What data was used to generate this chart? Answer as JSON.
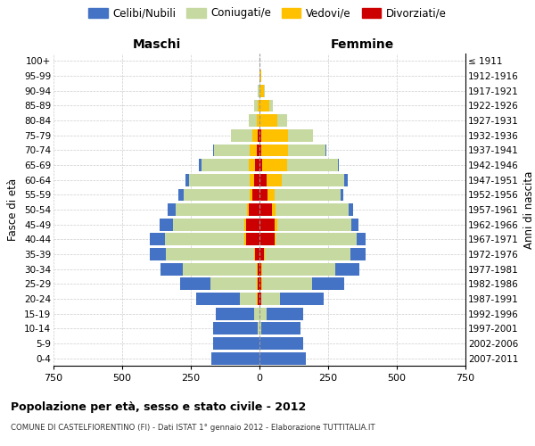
{
  "age_groups": [
    "0-4",
    "5-9",
    "10-14",
    "15-19",
    "20-24",
    "25-29",
    "30-34",
    "35-39",
    "40-44",
    "45-49",
    "50-54",
    "55-59",
    "60-64",
    "65-69",
    "70-74",
    "75-79",
    "80-84",
    "85-89",
    "90-94",
    "95-99",
    "100+"
  ],
  "birth_years": [
    "2007-2011",
    "2002-2006",
    "1997-2001",
    "1992-1996",
    "1987-1991",
    "1982-1986",
    "1977-1981",
    "1972-1976",
    "1967-1971",
    "1962-1966",
    "1957-1961",
    "1952-1956",
    "1947-1951",
    "1942-1946",
    "1937-1941",
    "1932-1936",
    "1927-1931",
    "1922-1926",
    "1917-1921",
    "1912-1916",
    "≤ 1911"
  ],
  "males": {
    "celibi": [
      175,
      170,
      165,
      140,
      160,
      110,
      80,
      60,
      55,
      50,
      30,
      20,
      15,
      10,
      5,
      0,
      0,
      0,
      0,
      0,
      0
    ],
    "coniugati": [
      0,
      0,
      5,
      20,
      60,
      170,
      270,
      320,
      290,
      260,
      260,
      240,
      220,
      170,
      130,
      80,
      30,
      15,
      5,
      0,
      0
    ],
    "vedovi": [
      0,
      0,
      0,
      0,
      5,
      5,
      5,
      5,
      5,
      5,
      5,
      10,
      15,
      25,
      25,
      20,
      10,
      5,
      0,
      0,
      0
    ],
    "divorziati": [
      0,
      0,
      0,
      0,
      5,
      5,
      5,
      15,
      50,
      50,
      40,
      25,
      20,
      15,
      10,
      5,
      0,
      0,
      0,
      0,
      0
    ]
  },
  "females": {
    "nubili": [
      170,
      160,
      145,
      135,
      160,
      120,
      90,
      55,
      30,
      25,
      15,
      10,
      10,
      5,
      5,
      0,
      0,
      0,
      0,
      0,
      0
    ],
    "coniugate": [
      0,
      0,
      5,
      25,
      70,
      180,
      265,
      310,
      295,
      270,
      265,
      240,
      230,
      185,
      135,
      90,
      35,
      15,
      5,
      0,
      0
    ],
    "vedove": [
      0,
      0,
      0,
      0,
      0,
      5,
      5,
      5,
      5,
      10,
      15,
      25,
      55,
      90,
      100,
      100,
      65,
      35,
      15,
      5,
      0
    ],
    "divorziate": [
      0,
      0,
      0,
      0,
      5,
      5,
      5,
      15,
      55,
      55,
      45,
      30,
      25,
      10,
      5,
      5,
      0,
      0,
      0,
      0,
      0
    ]
  },
  "colors": {
    "celibi": "#4472c4",
    "coniugati": "#c5d9a0",
    "vedovi": "#ffc000",
    "divorziati": "#cc0000"
  },
  "xlim": 750,
  "title": "Popolazione per età, sesso e stato civile - 2012",
  "subtitle": "COMUNE DI CASTELFIORENTINO (FI) - Dati ISTAT 1° gennaio 2012 - Elaborazione TUTTITALIA.IT",
  "ylabel": "Fasce di età",
  "ylabel_right": "Anni di nascita",
  "legend_labels": [
    "Celibi/Nubili",
    "Coniugati/e",
    "Vedovi/e",
    "Divorziati/e"
  ],
  "maschi_label": "Maschi",
  "femmine_label": "Femmine"
}
